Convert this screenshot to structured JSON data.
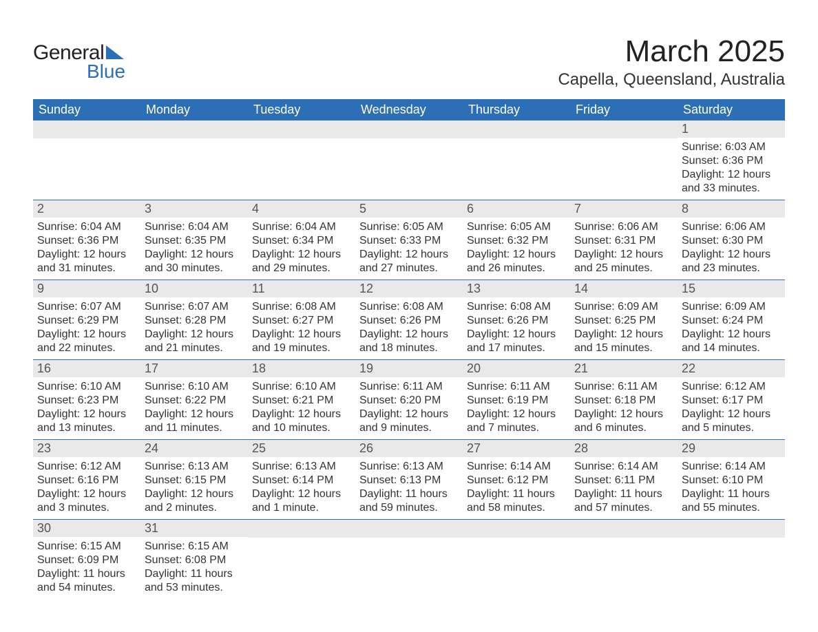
{
  "colors": {
    "header_bg": "#2d6fb6",
    "header_text": "#ffffff",
    "daynum_bg": "#e9e9e9",
    "daynum_text": "#555555",
    "body_text": "#333333",
    "row_border": "#2d6fb6",
    "logo_dark": "#231f20",
    "logo_blue": "#2d6fb6",
    "background": "#ffffff"
  },
  "typography": {
    "title_fontsize_pt": 33,
    "location_fontsize_pt": 18,
    "header_fontsize_pt": 14,
    "daynum_fontsize_pt": 14,
    "body_fontsize_pt": 12,
    "font_family": "Arial"
  },
  "logo": {
    "line1": "General",
    "line2": "Blue"
  },
  "title": "March 2025",
  "location": "Capella, Queensland, Australia",
  "day_headers": [
    "Sunday",
    "Monday",
    "Tuesday",
    "Wednesday",
    "Thursday",
    "Friday",
    "Saturday"
  ],
  "weeks": [
    [
      {
        "day": "",
        "lines": []
      },
      {
        "day": "",
        "lines": []
      },
      {
        "day": "",
        "lines": []
      },
      {
        "day": "",
        "lines": []
      },
      {
        "day": "",
        "lines": []
      },
      {
        "day": "",
        "lines": []
      },
      {
        "day": "1",
        "lines": [
          "Sunrise: 6:03 AM",
          "Sunset: 6:36 PM",
          "Daylight: 12 hours",
          "and 33 minutes."
        ]
      }
    ],
    [
      {
        "day": "2",
        "lines": [
          "Sunrise: 6:04 AM",
          "Sunset: 6:36 PM",
          "Daylight: 12 hours",
          "and 31 minutes."
        ]
      },
      {
        "day": "3",
        "lines": [
          "Sunrise: 6:04 AM",
          "Sunset: 6:35 PM",
          "Daylight: 12 hours",
          "and 30 minutes."
        ]
      },
      {
        "day": "4",
        "lines": [
          "Sunrise: 6:04 AM",
          "Sunset: 6:34 PM",
          "Daylight: 12 hours",
          "and 29 minutes."
        ]
      },
      {
        "day": "5",
        "lines": [
          "Sunrise: 6:05 AM",
          "Sunset: 6:33 PM",
          "Daylight: 12 hours",
          "and 27 minutes."
        ]
      },
      {
        "day": "6",
        "lines": [
          "Sunrise: 6:05 AM",
          "Sunset: 6:32 PM",
          "Daylight: 12 hours",
          "and 26 minutes."
        ]
      },
      {
        "day": "7",
        "lines": [
          "Sunrise: 6:06 AM",
          "Sunset: 6:31 PM",
          "Daylight: 12 hours",
          "and 25 minutes."
        ]
      },
      {
        "day": "8",
        "lines": [
          "Sunrise: 6:06 AM",
          "Sunset: 6:30 PM",
          "Daylight: 12 hours",
          "and 23 minutes."
        ]
      }
    ],
    [
      {
        "day": "9",
        "lines": [
          "Sunrise: 6:07 AM",
          "Sunset: 6:29 PM",
          "Daylight: 12 hours",
          "and 22 minutes."
        ]
      },
      {
        "day": "10",
        "lines": [
          "Sunrise: 6:07 AM",
          "Sunset: 6:28 PM",
          "Daylight: 12 hours",
          "and 21 minutes."
        ]
      },
      {
        "day": "11",
        "lines": [
          "Sunrise: 6:08 AM",
          "Sunset: 6:27 PM",
          "Daylight: 12 hours",
          "and 19 minutes."
        ]
      },
      {
        "day": "12",
        "lines": [
          "Sunrise: 6:08 AM",
          "Sunset: 6:26 PM",
          "Daylight: 12 hours",
          "and 18 minutes."
        ]
      },
      {
        "day": "13",
        "lines": [
          "Sunrise: 6:08 AM",
          "Sunset: 6:26 PM",
          "Daylight: 12 hours",
          "and 17 minutes."
        ]
      },
      {
        "day": "14",
        "lines": [
          "Sunrise: 6:09 AM",
          "Sunset: 6:25 PM",
          "Daylight: 12 hours",
          "and 15 minutes."
        ]
      },
      {
        "day": "15",
        "lines": [
          "Sunrise: 6:09 AM",
          "Sunset: 6:24 PM",
          "Daylight: 12 hours",
          "and 14 minutes."
        ]
      }
    ],
    [
      {
        "day": "16",
        "lines": [
          "Sunrise: 6:10 AM",
          "Sunset: 6:23 PM",
          "Daylight: 12 hours",
          "and 13 minutes."
        ]
      },
      {
        "day": "17",
        "lines": [
          "Sunrise: 6:10 AM",
          "Sunset: 6:22 PM",
          "Daylight: 12 hours",
          "and 11 minutes."
        ]
      },
      {
        "day": "18",
        "lines": [
          "Sunrise: 6:10 AM",
          "Sunset: 6:21 PM",
          "Daylight: 12 hours",
          "and 10 minutes."
        ]
      },
      {
        "day": "19",
        "lines": [
          "Sunrise: 6:11 AM",
          "Sunset: 6:20 PM",
          "Daylight: 12 hours",
          "and 9 minutes."
        ]
      },
      {
        "day": "20",
        "lines": [
          "Sunrise: 6:11 AM",
          "Sunset: 6:19 PM",
          "Daylight: 12 hours",
          "and 7 minutes."
        ]
      },
      {
        "day": "21",
        "lines": [
          "Sunrise: 6:11 AM",
          "Sunset: 6:18 PM",
          "Daylight: 12 hours",
          "and 6 minutes."
        ]
      },
      {
        "day": "22",
        "lines": [
          "Sunrise: 6:12 AM",
          "Sunset: 6:17 PM",
          "Daylight: 12 hours",
          "and 5 minutes."
        ]
      }
    ],
    [
      {
        "day": "23",
        "lines": [
          "Sunrise: 6:12 AM",
          "Sunset: 6:16 PM",
          "Daylight: 12 hours",
          "and 3 minutes."
        ]
      },
      {
        "day": "24",
        "lines": [
          "Sunrise: 6:13 AM",
          "Sunset: 6:15 PM",
          "Daylight: 12 hours",
          "and 2 minutes."
        ]
      },
      {
        "day": "25",
        "lines": [
          "Sunrise: 6:13 AM",
          "Sunset: 6:14 PM",
          "Daylight: 12 hours",
          "and 1 minute."
        ]
      },
      {
        "day": "26",
        "lines": [
          "Sunrise: 6:13 AM",
          "Sunset: 6:13 PM",
          "Daylight: 11 hours",
          "and 59 minutes."
        ]
      },
      {
        "day": "27",
        "lines": [
          "Sunrise: 6:14 AM",
          "Sunset: 6:12 PM",
          "Daylight: 11 hours",
          "and 58 minutes."
        ]
      },
      {
        "day": "28",
        "lines": [
          "Sunrise: 6:14 AM",
          "Sunset: 6:11 PM",
          "Daylight: 11 hours",
          "and 57 minutes."
        ]
      },
      {
        "day": "29",
        "lines": [
          "Sunrise: 6:14 AM",
          "Sunset: 6:10 PM",
          "Daylight: 11 hours",
          "and 55 minutes."
        ]
      }
    ],
    [
      {
        "day": "30",
        "lines": [
          "Sunrise: 6:15 AM",
          "Sunset: 6:09 PM",
          "Daylight: 11 hours",
          "and 54 minutes."
        ]
      },
      {
        "day": "31",
        "lines": [
          "Sunrise: 6:15 AM",
          "Sunset: 6:08 PM",
          "Daylight: 11 hours",
          "and 53 minutes."
        ]
      },
      {
        "day": "",
        "lines": []
      },
      {
        "day": "",
        "lines": []
      },
      {
        "day": "",
        "lines": []
      },
      {
        "day": "",
        "lines": []
      },
      {
        "day": "",
        "lines": []
      }
    ]
  ]
}
